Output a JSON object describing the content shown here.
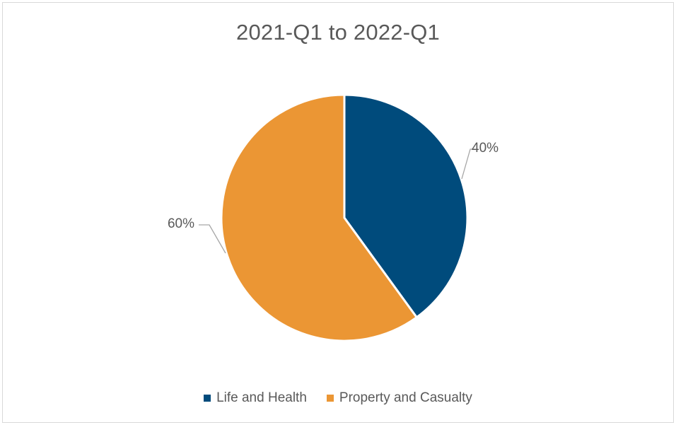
{
  "chart_data": {
    "type": "pie",
    "title": "2021-Q1 to 2022-Q1",
    "categories": [
      "Life and Health",
      "Property and Casualty"
    ],
    "values": [
      40,
      60
    ],
    "data_labels": [
      "40%",
      "60%"
    ],
    "colors": [
      "#004b7c",
      "#eb9634"
    ],
    "legend_position": "bottom",
    "start_angle": "top, clockwise"
  }
}
